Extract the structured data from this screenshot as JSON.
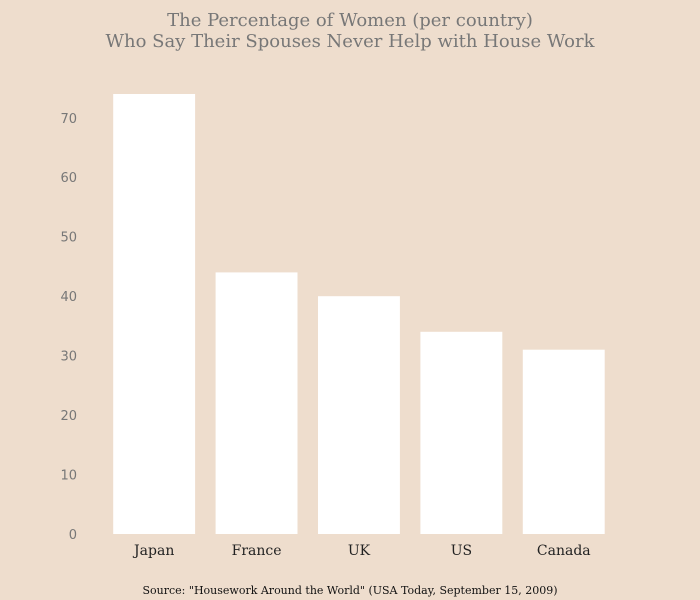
{
  "chart_data": {
    "type": "bar",
    "title_lines": [
      "The Percentage of Women (per country)",
      "Who Say Their Spouses Never Help with House Work"
    ],
    "categories": [
      "Japan",
      "France",
      "UK",
      "US",
      "Canada"
    ],
    "values": [
      74,
      44,
      40,
      34,
      31
    ],
    "xlabel": "",
    "ylabel": "",
    "ylim": [
      0,
      74
    ],
    "yticks": [
      0,
      10,
      20,
      30,
      40,
      50,
      60,
      70
    ],
    "grid": false,
    "source": "Source: \"Housework Around the World\" (USA Today, September 15, 2009)",
    "colors": {
      "background": "#eeddcd",
      "bar": "#ffffff",
      "title": "#777777",
      "tick": "#777777",
      "category": "#222222"
    }
  }
}
